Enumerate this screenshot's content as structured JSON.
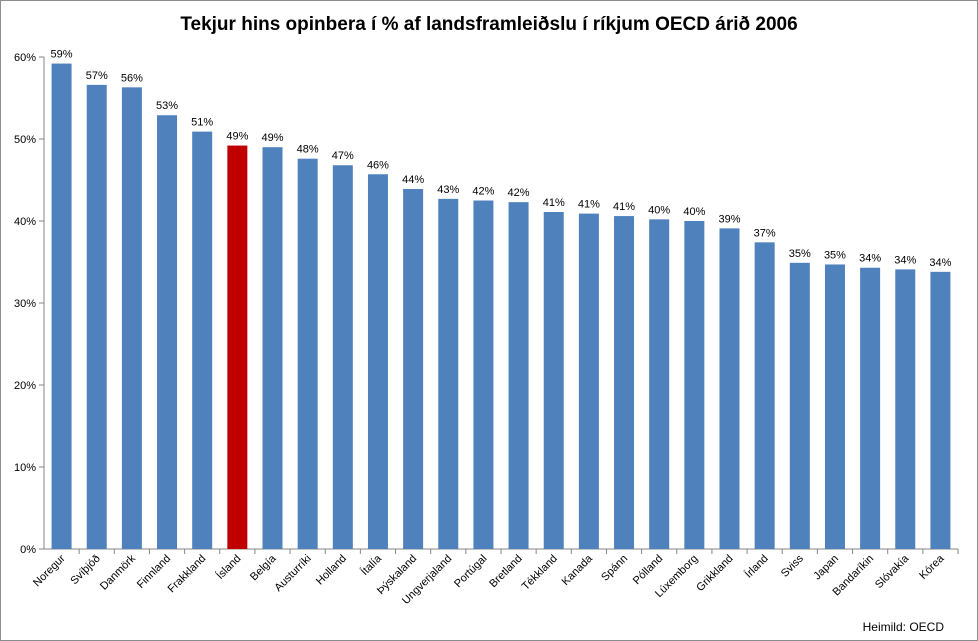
{
  "chart_data": {
    "type": "bar",
    "title": "Tekjur hins opinbera í % af landsframleiðslu í ríkjum OECD árið 2006",
    "categories": [
      "Noregur",
      "Svíþjóð",
      "Danmörk",
      "Finnland",
      "Frakkland",
      "Ísland",
      "Belgía",
      "Austurríki",
      "Holland",
      "Ítalía",
      "Þýskaland",
      "Ungverjaland",
      "Portúgal",
      "Bretland",
      "Tékkland",
      "Kanada",
      "Spánn",
      "Pólland",
      "Lúxemborg",
      "Grikkland",
      "Írland",
      "Sviss",
      "Japan",
      "Bandaríkin",
      "Slóvakía",
      "Kórea"
    ],
    "values": [
      59.2,
      56.6,
      56.3,
      52.9,
      50.9,
      49.2,
      49.0,
      47.6,
      46.8,
      45.7,
      43.9,
      42.7,
      42.5,
      42.3,
      41.1,
      40.9,
      40.6,
      40.2,
      40.0,
      39.1,
      37.4,
      34.9,
      34.7,
      34.3,
      34.1,
      33.8
    ],
    "data_labels": [
      "59%",
      "57%",
      "56%",
      "53%",
      "51%",
      "49%",
      "49%",
      "48%",
      "47%",
      "46%",
      "44%",
      "43%",
      "42%",
      "42%",
      "41%",
      "41%",
      "41%",
      "40%",
      "40%",
      "39%",
      "37%",
      "35%",
      "35%",
      "34%",
      "34%",
      "34%"
    ],
    "yticks": [
      "0%",
      "10%",
      "20%",
      "30%",
      "40%",
      "50%",
      "60%"
    ],
    "ylim": [
      0,
      60
    ],
    "grid": false,
    "bar_color": "#4f81bd",
    "highlight_category": "Ísland",
    "highlight_color": "#c00000"
  },
  "source_note": "Heimild: OECD"
}
